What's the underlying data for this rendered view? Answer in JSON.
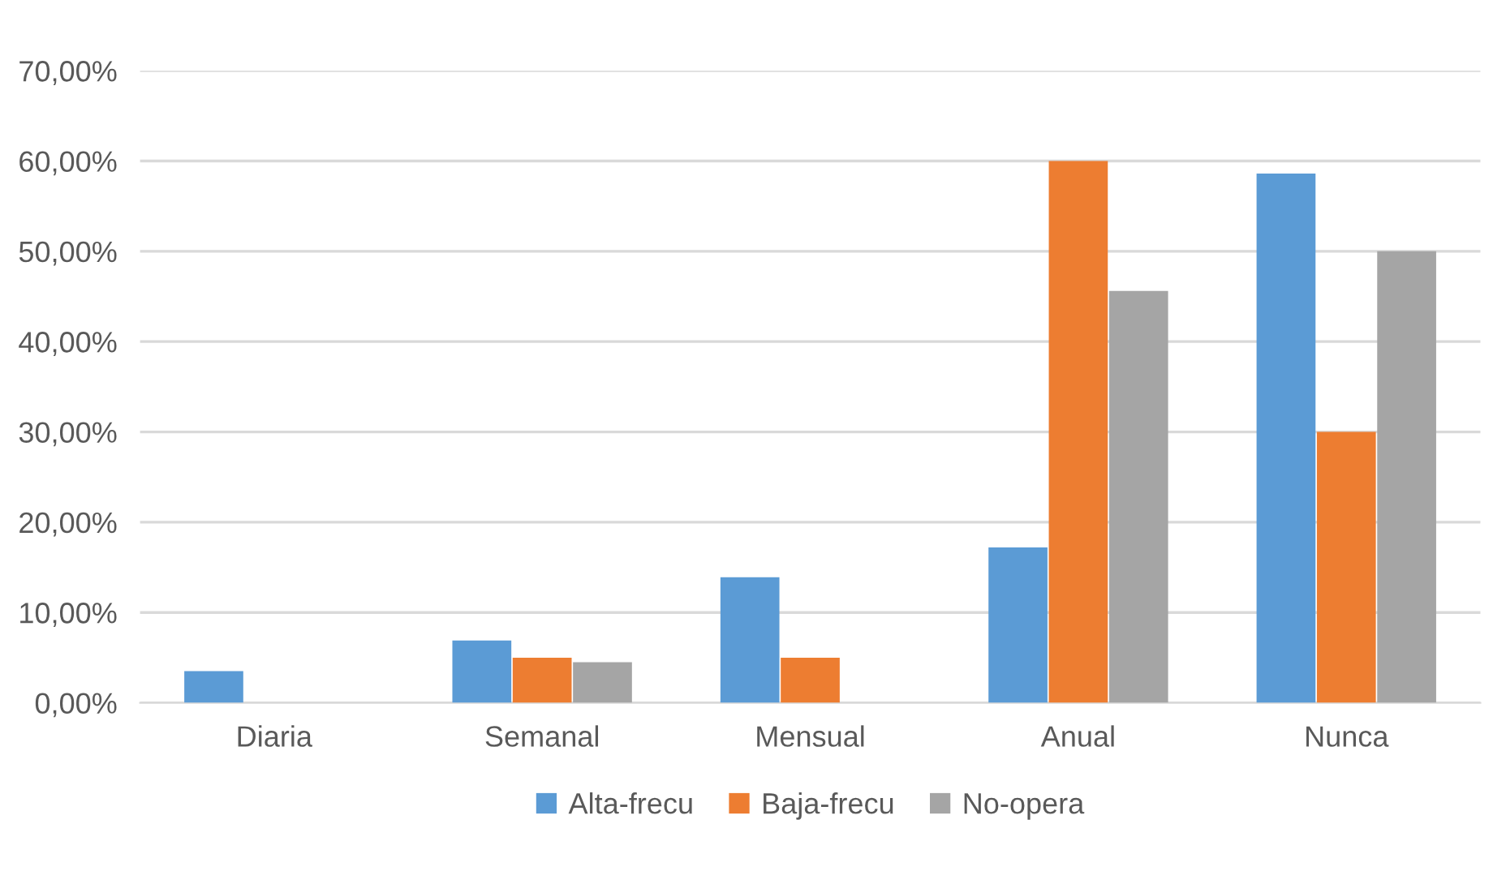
{
  "chart_data": {
    "type": "bar",
    "categories": [
      "Diaria",
      "Semanal",
      "Mensual",
      "Anual",
      "Nunca"
    ],
    "series": [
      {
        "name": "Alta-frecu",
        "color": "#5b9bd5",
        "values": [
          3.5,
          6.9,
          13.9,
          17.2,
          58.6
        ]
      },
      {
        "name": "Baja-frecu",
        "color": "#ed7d31",
        "values": [
          0,
          5.0,
          5.0,
          60.0,
          30.0
        ]
      },
      {
        "name": "No-opera",
        "color": "#a5a5a5",
        "values": [
          0,
          4.5,
          0,
          45.6,
          50.0
        ]
      }
    ],
    "ylim": [
      0,
      70
    ],
    "yticks": [
      {
        "value": 0,
        "label": "0,00%"
      },
      {
        "value": 10,
        "label": "10,00%"
      },
      {
        "value": 20,
        "label": "20,00%"
      },
      {
        "value": 30,
        "label": "30,00%"
      },
      {
        "value": 40,
        "label": "40,00%"
      },
      {
        "value": 50,
        "label": "50,00%"
      },
      {
        "value": 60,
        "label": "60,00%"
      },
      {
        "value": 70,
        "label": "70,00%"
      }
    ],
    "grid": "y",
    "legend": "bottom"
  }
}
